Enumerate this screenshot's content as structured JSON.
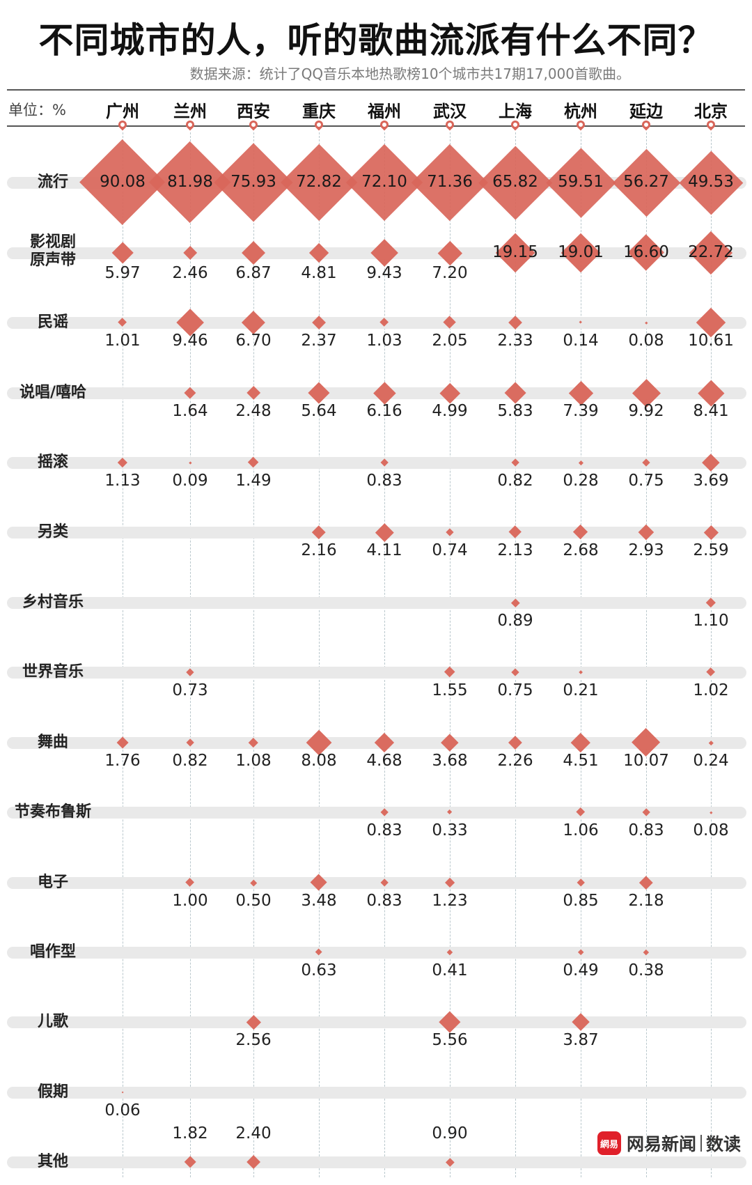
{
  "title": "不同城市的人，听的歌曲流派有什么不同？",
  "subtitle": "数据来源：统计了QQ音乐本地热歌榜10个城市共17期17,000首歌曲。",
  "unit_label": "单位：%",
  "logo": {
    "badge": "網易",
    "brand": "网易新闻",
    "section": "数读"
  },
  "colors": {
    "diamond": "#d9665a",
    "overlap": "#c0392b",
    "track": "#e9e9e9",
    "text": "#222222"
  },
  "chart_data": {
    "type": "table",
    "title": "不同城市的人，听的歌曲流派有什么不同？",
    "subtitle": "数据来源：统计了QQ音乐本地热歌榜10个城市共17期17,000首歌曲。",
    "unit": "%",
    "encoding": "diamond area proportional to share",
    "categories": [
      "广州",
      "兰州",
      "西安",
      "重庆",
      "福州",
      "武汉",
      "上海",
      "杭州",
      "延边",
      "北京"
    ],
    "series": [
      {
        "name": "流行",
        "values": [
          90.08,
          81.98,
          75.93,
          72.82,
          72.1,
          71.36,
          65.82,
          59.51,
          56.27,
          49.53
        ]
      },
      {
        "name": "影视剧原声带",
        "values": [
          5.97,
          2.46,
          6.87,
          4.81,
          9.43,
          7.2,
          19.15,
          19.01,
          16.6,
          22.72
        ]
      },
      {
        "name": "民谣",
        "values": [
          1.01,
          9.46,
          6.7,
          2.37,
          1.03,
          2.05,
          2.33,
          0.14,
          0.08,
          10.61
        ]
      },
      {
        "name": "说唱/嘻哈",
        "values": [
          null,
          1.64,
          2.48,
          5.64,
          6.16,
          4.99,
          5.83,
          7.39,
          9.92,
          8.41
        ]
      },
      {
        "name": "摇滚",
        "values": [
          1.13,
          0.09,
          1.49,
          null,
          0.83,
          null,
          0.82,
          0.28,
          0.75,
          3.69
        ]
      },
      {
        "name": "另类",
        "values": [
          null,
          null,
          null,
          2.16,
          4.11,
          0.74,
          2.13,
          2.68,
          2.93,
          2.59
        ]
      },
      {
        "name": "乡村音乐",
        "values": [
          null,
          null,
          null,
          null,
          null,
          null,
          0.89,
          null,
          null,
          1.1
        ]
      },
      {
        "name": "世界音乐",
        "values": [
          null,
          0.73,
          null,
          null,
          null,
          1.55,
          0.75,
          0.21,
          null,
          1.02
        ]
      },
      {
        "name": "舞曲",
        "values": [
          1.76,
          0.82,
          1.08,
          8.08,
          4.68,
          3.68,
          2.26,
          4.51,
          10.07,
          0.24
        ]
      },
      {
        "name": "节奏布鲁斯",
        "values": [
          null,
          null,
          null,
          null,
          0.83,
          0.33,
          null,
          1.06,
          0.83,
          0.08
        ]
      },
      {
        "name": "电子",
        "values": [
          null,
          1.0,
          0.5,
          3.48,
          0.83,
          1.23,
          null,
          0.85,
          2.18,
          null
        ]
      },
      {
        "name": "唱作型",
        "values": [
          null,
          null,
          null,
          0.63,
          null,
          0.41,
          null,
          0.49,
          0.38,
          null
        ]
      },
      {
        "name": "儿歌",
        "values": [
          null,
          null,
          2.56,
          null,
          null,
          5.56,
          null,
          3.87,
          null,
          null
        ]
      },
      {
        "name": "假期",
        "values": [
          0.06,
          null,
          null,
          null,
          null,
          null,
          null,
          null,
          null,
          null
        ]
      },
      {
        "name": "其他",
        "values": [
          null,
          1.82,
          2.4,
          null,
          null,
          0.9,
          null,
          null,
          null,
          null
        ]
      }
    ],
    "value_labels": [
      [
        "90.08",
        "81.98",
        "75.93",
        "72.82",
        "72.10",
        "71.36",
        "65.82",
        "59.51",
        "56.27",
        "49.53"
      ],
      [
        "5.97",
        "2.46",
        "6.87",
        "4.81",
        "9.43",
        "7.20",
        "19.15",
        "19.01",
        "16.60",
        "22.72"
      ],
      [
        "1.01",
        "9.46",
        "6.70",
        "2.37",
        "1.03",
        "2.05",
        "2.33",
        "0.14",
        "0.08",
        "10.61"
      ],
      [
        "",
        "1.64",
        "2.48",
        "5.64",
        "6.16",
        "4.99",
        "5.83",
        "7.39",
        "9.92",
        "8.41"
      ],
      [
        "1.13",
        "0.09",
        "1.49",
        "",
        "0.83",
        "",
        "0.82",
        "0.28",
        "0.75",
        "3.69"
      ],
      [
        "",
        "",
        "",
        "2.16",
        "4.11",
        "0.74",
        "2.13",
        "2.68",
        "2.93",
        "2.59"
      ],
      [
        "",
        "",
        "",
        "",
        "",
        "",
        "0.89",
        "",
        "",
        "1.10"
      ],
      [
        "",
        "0.73",
        "",
        "",
        "",
        "1.55",
        "0.75",
        "0.21",
        "",
        "1.02"
      ],
      [
        "1.76",
        "0.82",
        "1.08",
        "8.08",
        "4.68",
        "3.68",
        "2.26",
        "4.51",
        "10.07",
        "0.24"
      ],
      [
        "",
        "",
        "",
        "",
        "0.83",
        "0.33",
        "",
        "1.06",
        "0.83",
        "0.08"
      ],
      [
        "",
        "1.00",
        "0.50",
        "3.48",
        "0.83",
        "1.23",
        "",
        "0.85",
        "2.18",
        ""
      ],
      [
        "",
        "",
        "",
        "0.63",
        "",
        "0.41",
        "",
        "0.49",
        "0.38",
        ""
      ],
      [
        "",
        "",
        "2.56",
        "",
        "",
        "5.56",
        "",
        "3.87",
        "",
        ""
      ],
      [
        "0.06",
        "",
        "",
        "",
        "",
        "",
        "",
        "",
        "",
        ""
      ],
      [
        "",
        "1.82",
        "2.40",
        "",
        "",
        "0.90",
        "",
        "",
        "",
        ""
      ]
    ],
    "legend": null,
    "grid": "dashed vertical lines per city"
  }
}
